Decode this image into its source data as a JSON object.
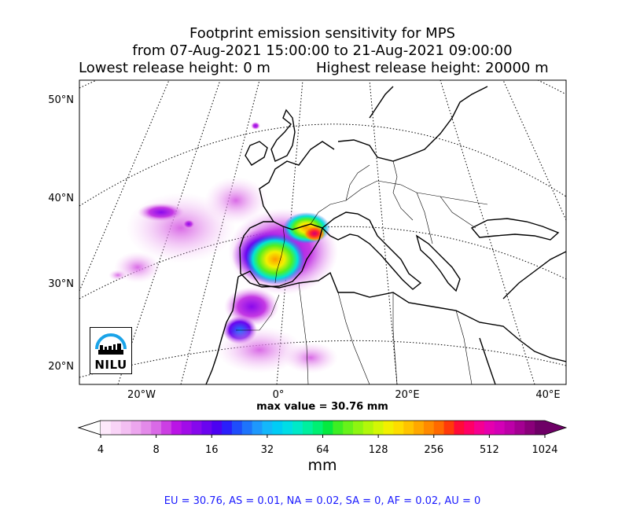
{
  "chart_data": {
    "type": "heatmap",
    "title": "Footprint emission sensitivity for MPS",
    "subtitle": "from 07-Aug-2021 15:00:00 to 21-Aug-2021 09:00:00",
    "release_low": "Lowest release height: 0 m",
    "release_high": "Highest release height: 20000 m",
    "lat_ticks": [
      "50°N",
      "40°N",
      "30°N",
      "20°N"
    ],
    "lon_ticks": [
      "20°W",
      "0°",
      "20°E",
      "40°E"
    ],
    "max_value_text": "max value = 30.76 mm",
    "colorbar": {
      "scale": "log",
      "tick_labels": [
        "4",
        "8",
        "16",
        "32",
        "64",
        "128",
        "256",
        "512",
        "1024"
      ],
      "unit": "mm",
      "colors": [
        "#fde9fb",
        "#f9d4f7",
        "#f3bff2",
        "#eca6ee",
        "#e38ae9",
        "#d96ae6",
        "#cc3fe3",
        "#ba14e6",
        "#a10ce8",
        "#8608ec",
        "#6a04ef",
        "#4c02f2",
        "#2a1ffb",
        "#1f4dfb",
        "#1e74fb",
        "#1e98fc",
        "#14b7fa",
        "#00ccf5",
        "#00dde6",
        "#00e9c8",
        "#00ef9e",
        "#00f072",
        "#05e93f",
        "#3dee23",
        "#67f21a",
        "#8ef511",
        "#b2f70a",
        "#d3f705",
        "#f2f000",
        "#fedd00",
        "#ffc400",
        "#ffa800",
        "#ff8a00",
        "#ff6a00",
        "#ff3a0a",
        "#ff0b38",
        "#ff0066",
        "#f50091",
        "#e500ae",
        "#d300b6",
        "#bd00a8",
        "#a40092",
        "#8a007a",
        "#6e0066"
      ]
    },
    "footer": "EU = 30.76,  AS = 0.01,  NA = 0.02,  SA = 0,  AF = 0.02,  AU = 0",
    "logo_text": "NILU"
  }
}
